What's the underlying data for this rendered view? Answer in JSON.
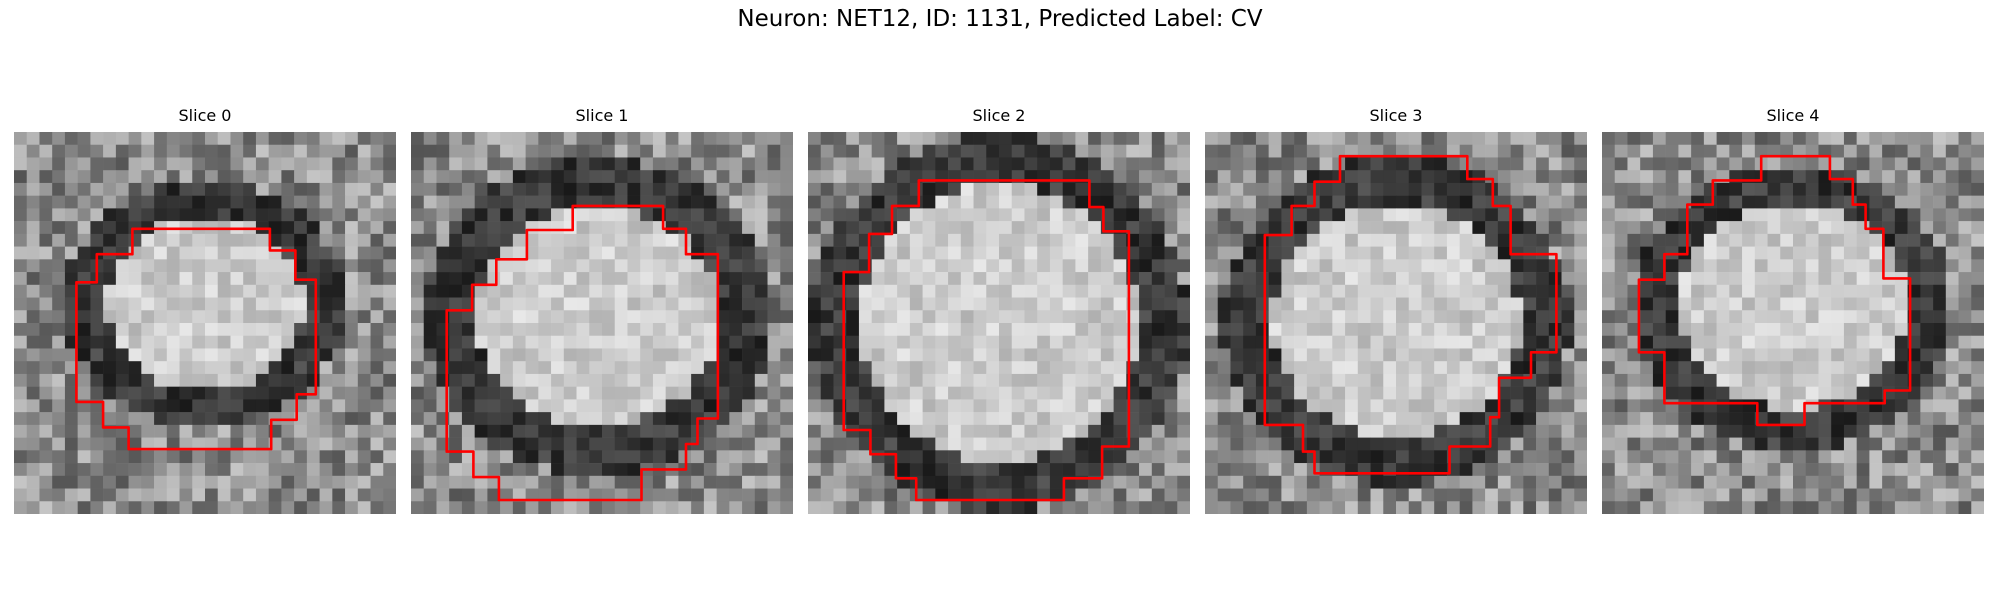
{
  "figure": {
    "title": "Neuron: NET12, ID: 1131, Predicted Label: CV"
  },
  "panels": [
    {
      "title": "Slice 0"
    },
    {
      "title": "Slice 1"
    },
    {
      "title": "Slice 2"
    },
    {
      "title": "Slice 3"
    },
    {
      "title": "Slice 4"
    }
  ],
  "colors": {
    "outline": "#ff0000",
    "background": "#ffffff"
  },
  "image": {
    "colormap": "grayscale",
    "description_source": "electron-microscopy-like grayscale slices with red segmentation contour"
  }
}
